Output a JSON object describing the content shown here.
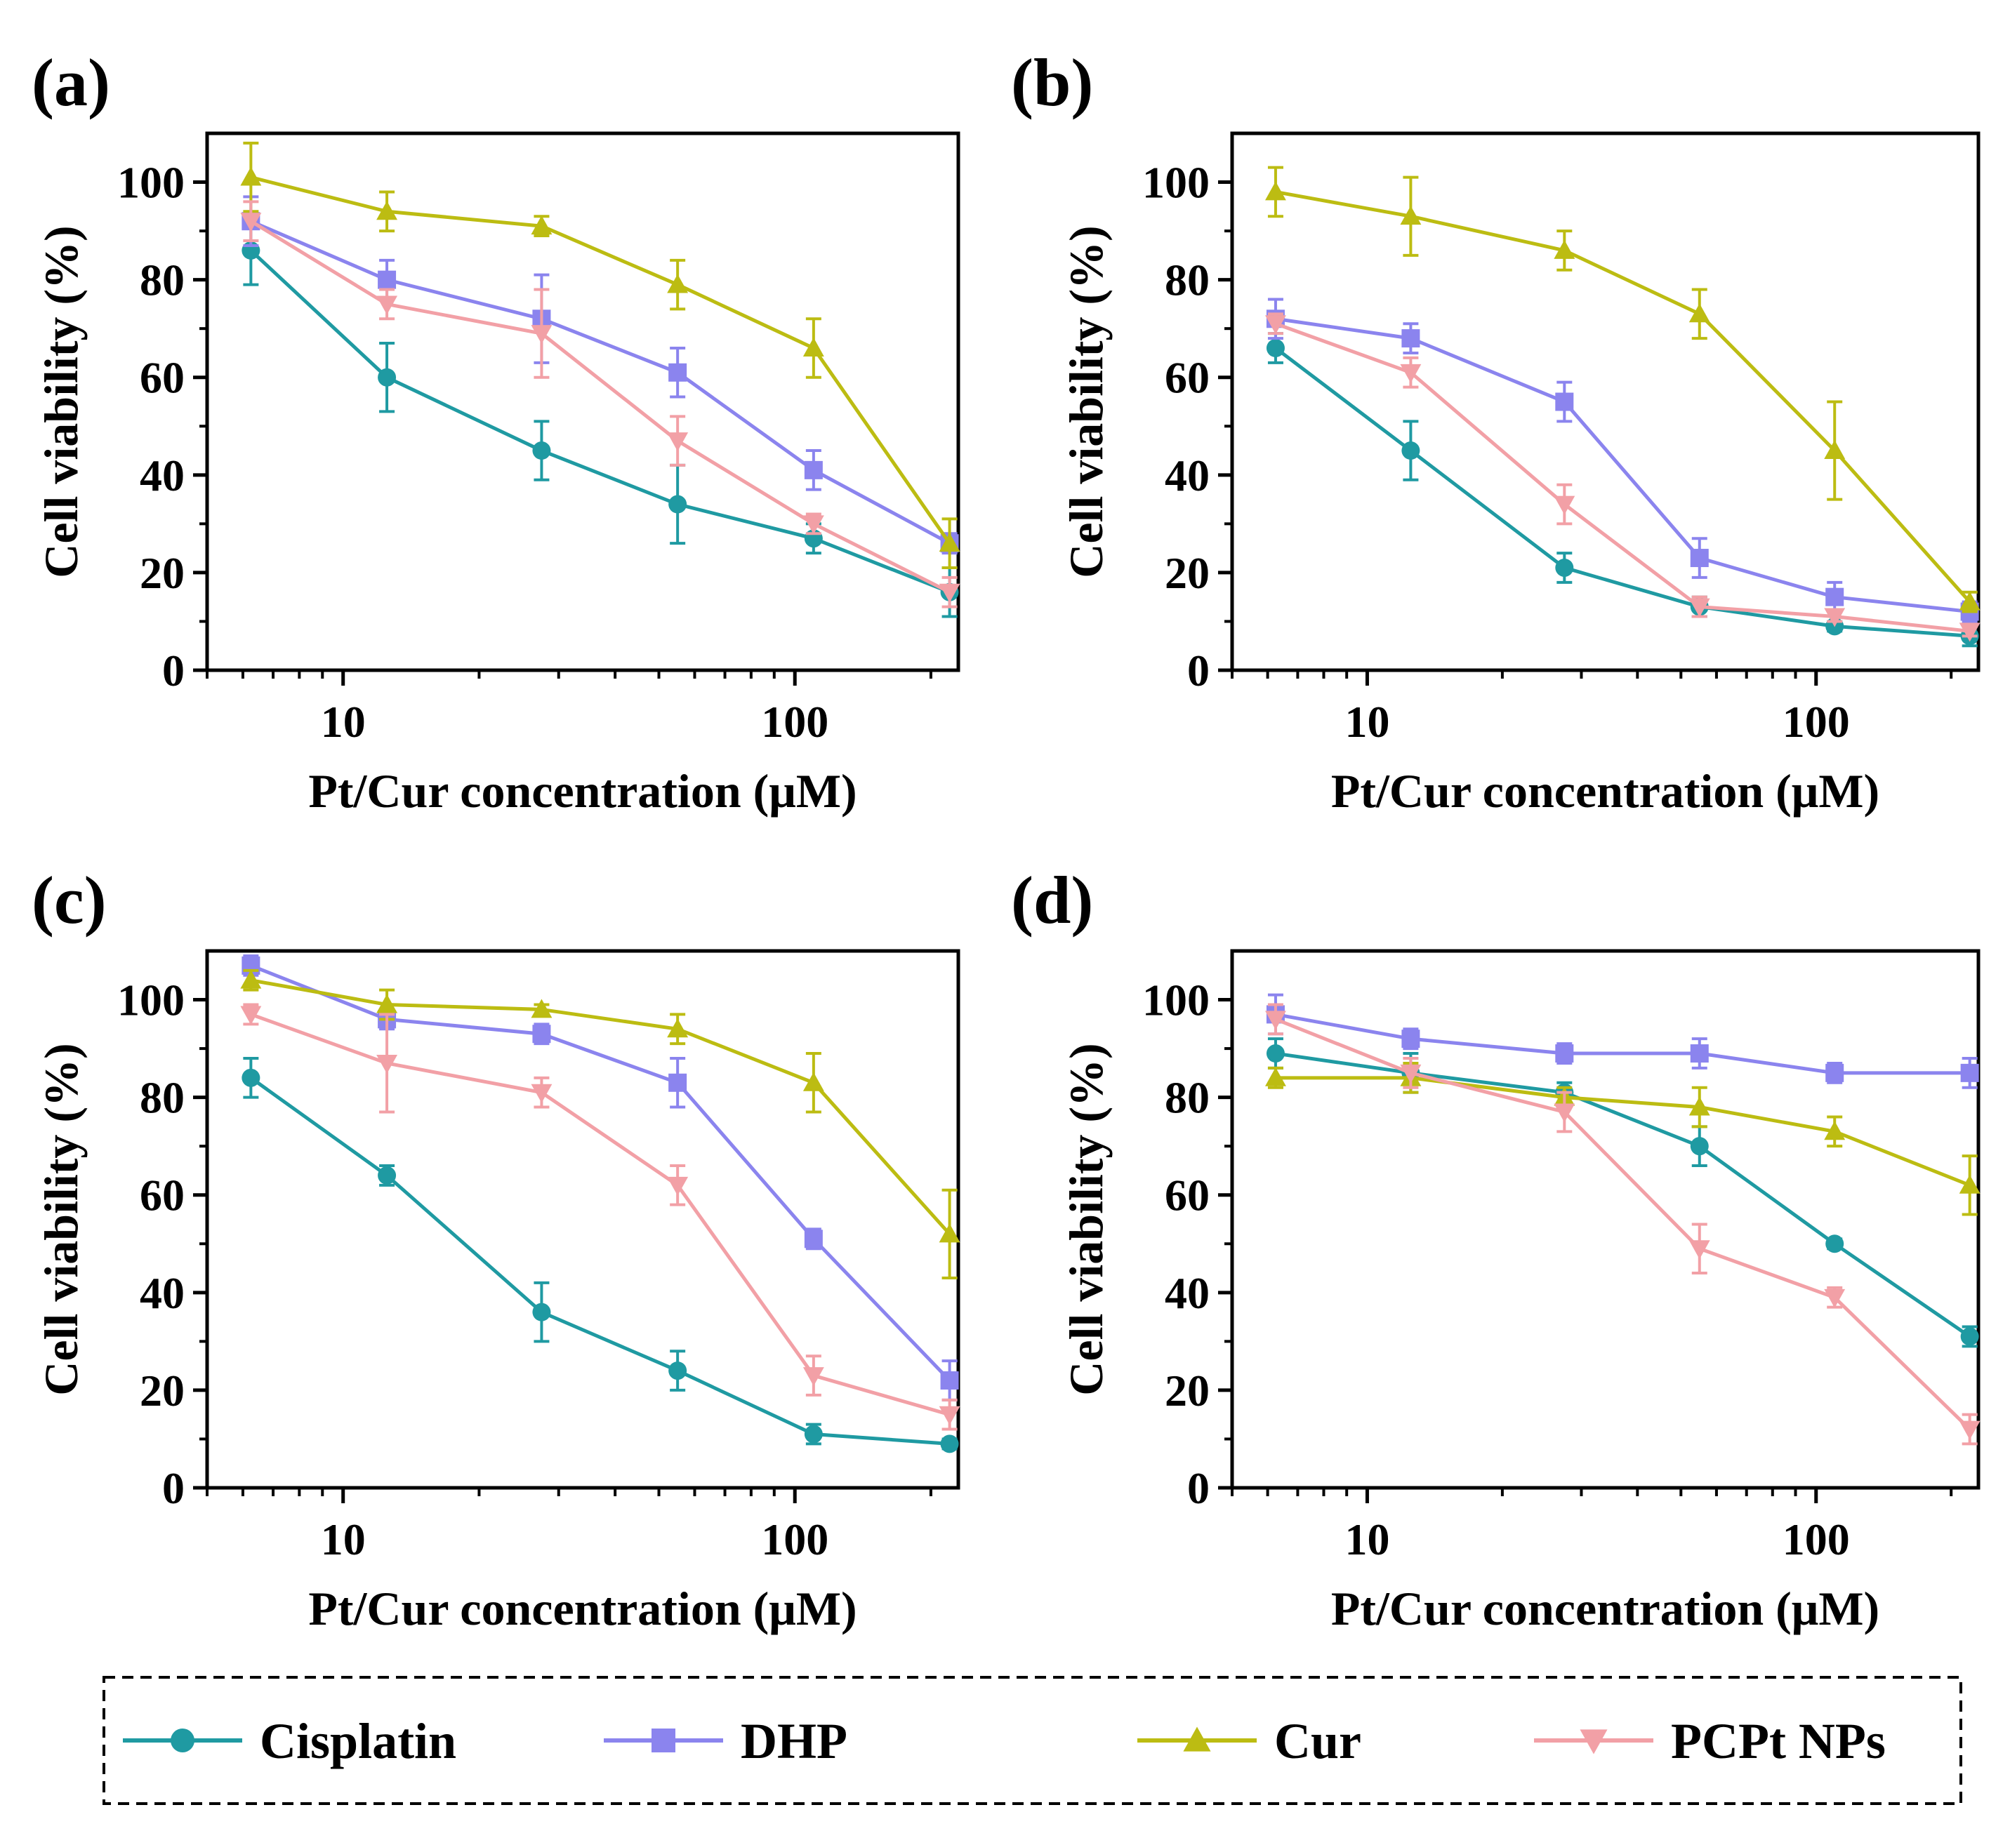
{
  "legend": {
    "items": [
      {
        "name": "Cisplatin",
        "color": "#1f9aa2",
        "marker": "circle"
      },
      {
        "name": "DHP",
        "color": "#8b84ee",
        "marker": "square"
      },
      {
        "name": "Cur",
        "color": "#bcbc12",
        "marker": "triangle-up"
      },
      {
        "name": "PCPt NPs",
        "color": "#f2a0a6",
        "marker": "triangle-down"
      }
    ]
  },
  "chart_data": [
    {
      "panel_label": "(a)",
      "type": "line",
      "xscale": "log",
      "xlabel": "Pt/Cur concentration (μM)",
      "ylabel": "Cell viability (%)",
      "xlim": [
        5,
        230
      ],
      "ylim": [
        0,
        110
      ],
      "x": [
        6.25,
        12.5,
        27.5,
        55,
        110,
        220
      ],
      "xticks": [
        {
          "value": 10,
          "label": "10"
        },
        {
          "value": 100,
          "label": "100"
        }
      ],
      "yticks": [
        {
          "value": 0,
          "label": "0"
        },
        {
          "value": 20,
          "label": "20"
        },
        {
          "value": 40,
          "label": "40"
        },
        {
          "value": 60,
          "label": "60"
        },
        {
          "value": 80,
          "label": "80"
        },
        {
          "value": 100,
          "label": "100"
        }
      ],
      "series": [
        {
          "name": "Cisplatin",
          "values": [
            86,
            60,
            45,
            34,
            27,
            16
          ],
          "errors": [
            7,
            7,
            6,
            8,
            3,
            5
          ]
        },
        {
          "name": "DHP",
          "values": [
            92,
            80,
            72,
            61,
            41,
            26
          ],
          "errors": [
            5,
            4,
            9,
            5,
            4,
            2
          ]
        },
        {
          "name": "Cur",
          "values": [
            101,
            94,
            91,
            79,
            66,
            26
          ],
          "errors": [
            7,
            4,
            2,
            5,
            6,
            5
          ]
        },
        {
          "name": "PCPt NPs",
          "values": [
            92,
            75,
            69,
            47,
            30,
            16
          ],
          "errors": [
            4,
            3,
            9,
            5,
            2,
            3
          ]
        }
      ]
    },
    {
      "panel_label": "(b)",
      "type": "line",
      "xscale": "log",
      "xlabel": "Pt/Cur concentration (μM)",
      "ylabel": "Cell viability (%)",
      "xlim": [
        5,
        230
      ],
      "ylim": [
        0,
        110
      ],
      "x": [
        6.25,
        12.5,
        27.5,
        55,
        110,
        220
      ],
      "xticks": [
        {
          "value": 10,
          "label": "10"
        },
        {
          "value": 100,
          "label": "100"
        }
      ],
      "yticks": [
        {
          "value": 0,
          "label": "0"
        },
        {
          "value": 20,
          "label": "20"
        },
        {
          "value": 40,
          "label": "40"
        },
        {
          "value": 60,
          "label": "60"
        },
        {
          "value": 80,
          "label": "80"
        },
        {
          "value": 100,
          "label": "100"
        }
      ],
      "series": [
        {
          "name": "Cisplatin",
          "values": [
            66,
            45,
            21,
            13,
            9,
            7
          ],
          "errors": [
            3,
            6,
            3,
            2,
            1,
            2
          ]
        },
        {
          "name": "DHP",
          "values": [
            72,
            68,
            55,
            23,
            15,
            12
          ],
          "errors": [
            4,
            3,
            4,
            4,
            3,
            2
          ]
        },
        {
          "name": "Cur",
          "values": [
            98,
            93,
            86,
            73,
            45,
            14
          ],
          "errors": [
            5,
            8,
            4,
            5,
            10,
            2
          ]
        },
        {
          "name": "PCPt NPs",
          "values": [
            71,
            61,
            34,
            13,
            11,
            8
          ],
          "errors": [
            2,
            3,
            4,
            2,
            1,
            1
          ]
        }
      ]
    },
    {
      "panel_label": "(c)",
      "type": "line",
      "xscale": "log",
      "xlabel": "Pt/Cur concentration (μM)",
      "ylabel": "Cell viability (%)",
      "xlim": [
        5,
        230
      ],
      "ylim": [
        0,
        110
      ],
      "x": [
        6.25,
        12.5,
        27.5,
        55,
        110,
        220
      ],
      "xticks": [
        {
          "value": 10,
          "label": "10"
        },
        {
          "value": 100,
          "label": "100"
        }
      ],
      "yticks": [
        {
          "value": 0,
          "label": "0"
        },
        {
          "value": 20,
          "label": "20"
        },
        {
          "value": 40,
          "label": "40"
        },
        {
          "value": 60,
          "label": "60"
        },
        {
          "value": 80,
          "label": "80"
        },
        {
          "value": 100,
          "label": "100"
        }
      ],
      "series": [
        {
          "name": "Cisplatin",
          "values": [
            84,
            64,
            36,
            24,
            11,
            9
          ],
          "errors": [
            4,
            2,
            6,
            4,
            2,
            1
          ]
        },
        {
          "name": "DHP",
          "values": [
            107,
            96,
            93,
            83,
            51,
            22
          ],
          "errors": [
            2,
            2,
            2,
            5,
            2,
            4
          ]
        },
        {
          "name": "Cur",
          "values": [
            104,
            99,
            98,
            94,
            83,
            52
          ],
          "errors": [
            2,
            3,
            1,
            3,
            6,
            9
          ]
        },
        {
          "name": "PCPt NPs",
          "values": [
            97,
            87,
            81,
            62,
            23,
            15
          ],
          "errors": [
            2,
            10,
            3,
            4,
            4,
            3
          ]
        }
      ]
    },
    {
      "panel_label": "(d)",
      "type": "line",
      "xscale": "log",
      "xlabel": "Pt/Cur concentration (μM)",
      "ylabel": "Cell viability (%)",
      "xlim": [
        5,
        230
      ],
      "ylim": [
        0,
        110
      ],
      "x": [
        6.25,
        12.5,
        27.5,
        55,
        110,
        220
      ],
      "xticks": [
        {
          "value": 10,
          "label": "10"
        },
        {
          "value": 100,
          "label": "100"
        }
      ],
      "yticks": [
        {
          "value": 0,
          "label": "0"
        },
        {
          "value": 20,
          "label": "20"
        },
        {
          "value": 40,
          "label": "40"
        },
        {
          "value": 60,
          "label": "60"
        },
        {
          "value": 80,
          "label": "80"
        },
        {
          "value": 100,
          "label": "100"
        }
      ],
      "series": [
        {
          "name": "Cisplatin",
          "values": [
            89,
            85,
            81,
            70,
            50,
            31
          ],
          "errors": [
            3,
            4,
            2,
            4,
            1,
            2
          ]
        },
        {
          "name": "DHP",
          "values": [
            97,
            92,
            89,
            89,
            85,
            85
          ],
          "errors": [
            4,
            2,
            2,
            3,
            2,
            3
          ]
        },
        {
          "name": "Cur",
          "values": [
            84,
            84,
            80,
            78,
            73,
            62
          ],
          "errors": [
            2,
            3,
            2,
            4,
            3,
            6
          ]
        },
        {
          "name": "PCPt NPs",
          "values": [
            96,
            85,
            77,
            49,
            39,
            12
          ],
          "errors": [
            3,
            3,
            4,
            5,
            2,
            3
          ]
        }
      ]
    }
  ]
}
